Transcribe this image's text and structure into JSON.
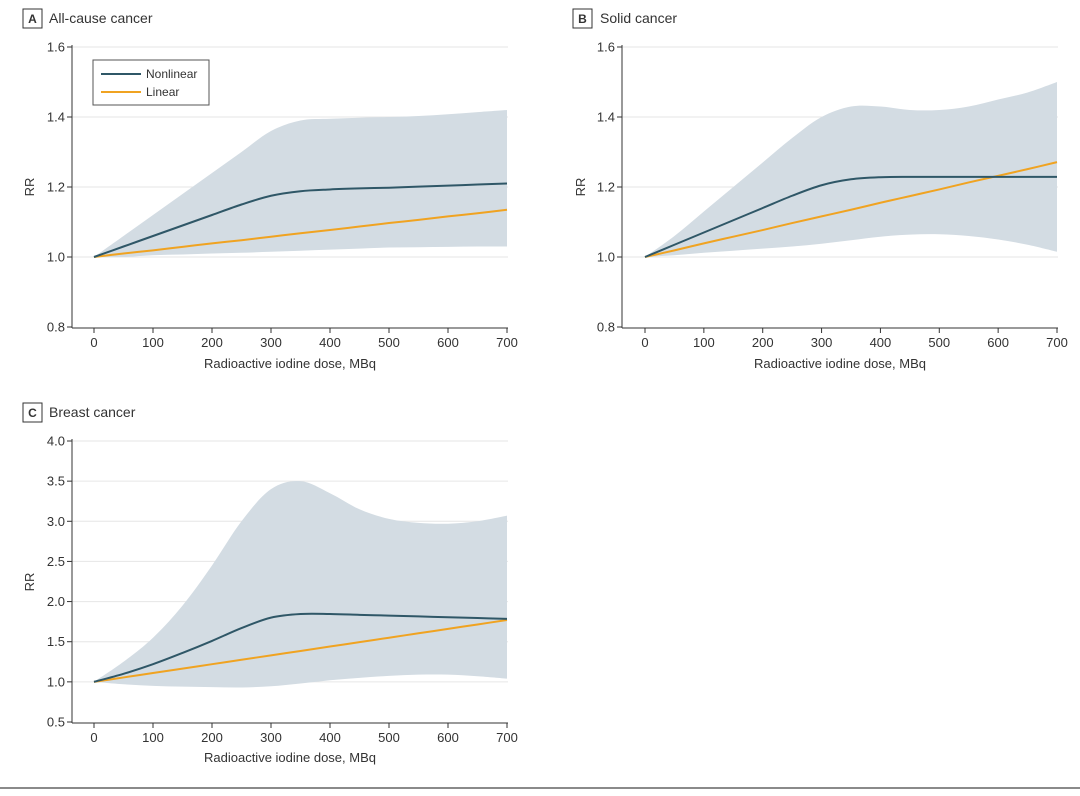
{
  "colors": {
    "nonlinear": "#2f5767",
    "linear": "#f0a321",
    "band": "#d3dce3",
    "grid": "#e6e6e6",
    "axis": "#333333",
    "text": "#333333"
  },
  "chart_data": [
    {
      "type": "line",
      "panel_letter": "A",
      "title": "All-cause cancer",
      "xlabel": "Radioactive iodine dose, MBq",
      "ylabel": "RR",
      "xlim": [
        0,
        700
      ],
      "ylim": [
        0.8,
        1.6
      ],
      "xticks": [
        0,
        100,
        200,
        300,
        400,
        500,
        600,
        700
      ],
      "yticks": [
        0.8,
        1.0,
        1.2,
        1.4,
        1.6
      ],
      "ytick_labels": [
        "0.8",
        "1.0",
        "1.2",
        "1.4",
        "1.6"
      ],
      "grid": true,
      "legend": {
        "position": "top-left",
        "entries": [
          "Nonlinear",
          "Linear"
        ]
      },
      "x": [
        0,
        50,
        100,
        150,
        200,
        250,
        300,
        350,
        400,
        450,
        500,
        550,
        600,
        650,
        700
      ],
      "series": [
        {
          "name": "Nonlinear",
          "values": [
            1.0,
            1.03,
            1.06,
            1.09,
            1.12,
            1.15,
            1.175,
            1.188,
            1.193,
            1.196,
            1.198,
            1.201,
            1.204,
            1.207,
            1.21
          ]
        },
        {
          "name": "Linear",
          "values": [
            1.0,
            1.01,
            1.019,
            1.029,
            1.039,
            1.048,
            1.058,
            1.068,
            1.077,
            1.087,
            1.097,
            1.106,
            1.116,
            1.125,
            1.135
          ]
        }
      ],
      "ci_upper": [
        1.0,
        1.06,
        1.12,
        1.18,
        1.24,
        1.3,
        1.36,
        1.39,
        1.395,
        1.398,
        1.4,
        1.403,
        1.408,
        1.414,
        1.42
      ],
      "ci_lower": [
        1.0,
        1.0,
        1.005,
        1.007,
        1.01,
        1.012,
        1.015,
        1.018,
        1.021,
        1.024,
        1.027,
        1.028,
        1.029,
        1.03,
        1.03
      ]
    },
    {
      "type": "line",
      "panel_letter": "B",
      "title": "Solid cancer",
      "xlabel": "Radioactive iodine dose, MBq",
      "ylabel": "RR",
      "xlim": [
        0,
        700
      ],
      "ylim": [
        0.8,
        1.6
      ],
      "xticks": [
        0,
        100,
        200,
        300,
        400,
        500,
        600,
        700
      ],
      "yticks": [
        0.8,
        1.0,
        1.2,
        1.4,
        1.6
      ],
      "ytick_labels": [
        "0.8",
        "1.0",
        "1.2",
        "1.4",
        "1.6"
      ],
      "grid": true,
      "x": [
        0,
        50,
        100,
        150,
        200,
        250,
        300,
        350,
        400,
        450,
        500,
        550,
        600,
        650,
        700
      ],
      "series": [
        {
          "name": "Nonlinear",
          "values": [
            1.0,
            1.035,
            1.07,
            1.105,
            1.14,
            1.175,
            1.205,
            1.222,
            1.228,
            1.229,
            1.229,
            1.229,
            1.229,
            1.229,
            1.229
          ]
        },
        {
          "name": "Linear",
          "values": [
            1.0,
            1.019,
            1.039,
            1.058,
            1.077,
            1.097,
            1.116,
            1.135,
            1.155,
            1.174,
            1.193,
            1.213,
            1.232,
            1.251,
            1.271
          ]
        }
      ],
      "ci_upper": [
        1.0,
        1.06,
        1.13,
        1.2,
        1.27,
        1.34,
        1.4,
        1.43,
        1.43,
        1.42,
        1.42,
        1.43,
        1.45,
        1.47,
        1.5
      ],
      "ci_lower": [
        1.0,
        1.005,
        1.012,
        1.018,
        1.024,
        1.03,
        1.038,
        1.048,
        1.058,
        1.064,
        1.065,
        1.06,
        1.05,
        1.035,
        1.015
      ]
    },
    {
      "type": "line",
      "panel_letter": "C",
      "title": "Breast cancer",
      "xlabel": "Radioactive iodine dose, MBq",
      "ylabel": "RR",
      "xlim": [
        0,
        700
      ],
      "ylim": [
        0.5,
        4.0
      ],
      "xticks": [
        0,
        100,
        200,
        300,
        400,
        500,
        600,
        700
      ],
      "yticks": [
        0.5,
        1.0,
        1.5,
        2.0,
        2.5,
        3.0,
        3.5,
        4.0
      ],
      "ytick_labels": [
        "0.5",
        "1.0",
        "1.5",
        "2.0",
        "2.5",
        "3.0",
        "3.5",
        "4.0"
      ],
      "grid": true,
      "x": [
        0,
        50,
        100,
        150,
        200,
        250,
        300,
        350,
        400,
        450,
        500,
        550,
        600,
        650,
        700
      ],
      "series": [
        {
          "name": "Nonlinear",
          "values": [
            1.0,
            1.1,
            1.22,
            1.36,
            1.51,
            1.67,
            1.8,
            1.845,
            1.845,
            1.835,
            1.825,
            1.815,
            1.805,
            1.795,
            1.785
          ]
        },
        {
          "name": "Linear",
          "values": [
            1.0,
            1.055,
            1.11,
            1.165,
            1.22,
            1.275,
            1.33,
            1.385,
            1.44,
            1.495,
            1.55,
            1.605,
            1.66,
            1.715,
            1.77
          ]
        }
      ],
      "ci_upper": [
        1.0,
        1.25,
        1.55,
        1.95,
        2.45,
        3.0,
        3.4,
        3.5,
        3.35,
        3.15,
        3.03,
        2.98,
        2.97,
        3.0,
        3.07
      ],
      "ci_lower": [
        1.0,
        0.97,
        0.95,
        0.94,
        0.935,
        0.93,
        0.945,
        0.98,
        1.02,
        1.05,
        1.075,
        1.09,
        1.09,
        1.07,
        1.04
      ]
    }
  ]
}
